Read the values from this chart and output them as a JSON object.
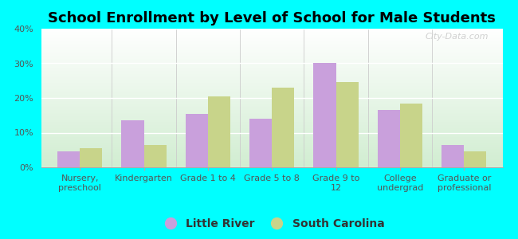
{
  "title": "School Enrollment by Level of School for Male Students",
  "categories": [
    "Nursery,\npreschool",
    "Kindergarten",
    "Grade 1 to 4",
    "Grade 5 to 8",
    "Grade 9 to\n12",
    "College\nundergrad",
    "Graduate or\nprofessional"
  ],
  "little_river": [
    4.5,
    13.5,
    15.5,
    14.0,
    30.0,
    16.5,
    6.5
  ],
  "south_carolina": [
    5.5,
    6.5,
    20.5,
    23.0,
    24.5,
    18.5,
    4.5
  ],
  "little_river_color": "#c9a0dc",
  "south_carolina_color": "#c8d48a",
  "background_outer": "#00FFFF",
  "ylim": [
    0,
    40
  ],
  "yticks": [
    0,
    10,
    20,
    30,
    40
  ],
  "bar_width": 0.35,
  "legend_label_1": "Little River",
  "legend_label_2": "South Carolina",
  "title_fontsize": 13,
  "tick_fontsize": 8,
  "legend_fontsize": 10,
  "watermark": "City-Data.com"
}
